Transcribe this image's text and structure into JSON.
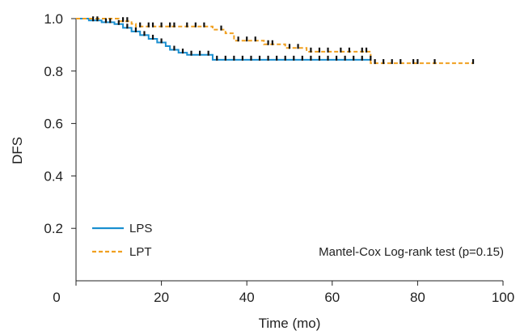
{
  "chart_data": {
    "type": "line",
    "subtype": "kaplan-meier step curve",
    "xlabel": "Time (mo)",
    "ylabel": "DFS",
    "xlim": [
      0,
      100
    ],
    "ylim": [
      0,
      1.0
    ],
    "x_ticks": [
      0,
      20,
      40,
      60,
      80,
      100
    ],
    "y_ticks": [
      0.2,
      0.4,
      0.6,
      0.8,
      1.0
    ],
    "y_tick_labels": [
      "0.2",
      "0.4",
      "0.6",
      "0.8",
      "1.0"
    ],
    "grid": false,
    "legend_position": "bottom-left",
    "annotation": "Mantel-Cox Log-rank test (p=0.15)",
    "series": [
      {
        "name": "LPS",
        "color": "#1a8fd0",
        "line_style": "solid",
        "steps": [
          [
            0,
            1.0
          ],
          [
            3,
            0.993
          ],
          [
            6,
            0.986
          ],
          [
            9,
            0.979
          ],
          [
            11,
            0.965
          ],
          [
            13,
            0.951
          ],
          [
            15,
            0.937
          ],
          [
            17,
            0.923
          ],
          [
            19,
            0.909
          ],
          [
            21,
            0.895
          ],
          [
            22,
            0.881
          ],
          [
            24,
            0.87
          ],
          [
            26,
            0.862
          ],
          [
            32,
            0.843
          ],
          [
            69,
            0.843
          ]
        ],
        "censor_times": [
          4,
          5,
          7,
          8,
          10,
          12,
          14,
          16,
          18,
          20,
          23,
          25,
          27,
          29,
          31,
          33,
          35,
          37,
          39,
          41,
          43,
          45,
          47,
          49,
          51,
          53,
          55,
          57,
          59,
          61,
          63,
          65,
          67,
          69
        ]
      },
      {
        "name": "LPT",
        "color": "#f0a020",
        "line_style": "dashed",
        "steps": [
          [
            0,
            1.0
          ],
          [
            10,
            0.99
          ],
          [
            13,
            0.98
          ],
          [
            14,
            0.97
          ],
          [
            32,
            0.958
          ],
          [
            35,
            0.944
          ],
          [
            37,
            0.916
          ],
          [
            44,
            0.902
          ],
          [
            49,
            0.888
          ],
          [
            54,
            0.874
          ],
          [
            69,
            0.83
          ],
          [
            93,
            0.83
          ]
        ],
        "censor_times": [
          11,
          12,
          15,
          17,
          18,
          20,
          22,
          23,
          26,
          28,
          30,
          34,
          38,
          40,
          42,
          45,
          46,
          50,
          52,
          55,
          57,
          59,
          62,
          64,
          67,
          68,
          70,
          72,
          74,
          76,
          79,
          80,
          84,
          93
        ]
      }
    ]
  }
}
